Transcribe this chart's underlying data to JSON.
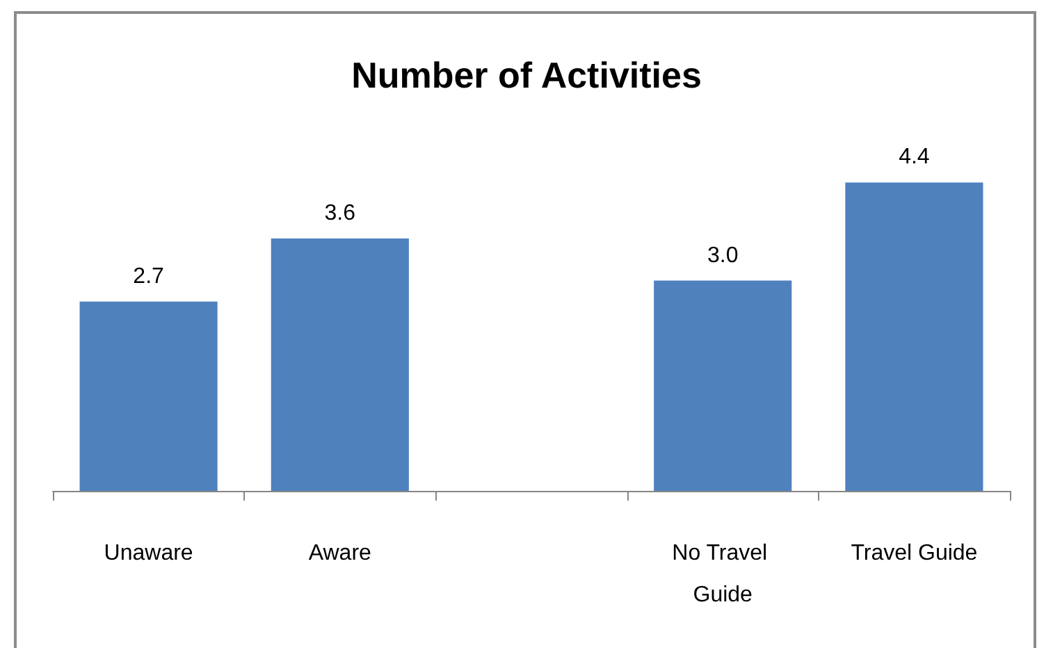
{
  "chart_data": {
    "type": "bar",
    "title": "Number of Activities",
    "categories": [
      "Unaware",
      "Aware",
      null,
      "No Travel Guide",
      "Travel Guide"
    ],
    "values": [
      2.7,
      3.6,
      null,
      3.0,
      4.4
    ],
    "value_labels": [
      "2.7",
      "3.6",
      null,
      "3.0",
      "4.4"
    ],
    "color": "#4f81bd"
  }
}
